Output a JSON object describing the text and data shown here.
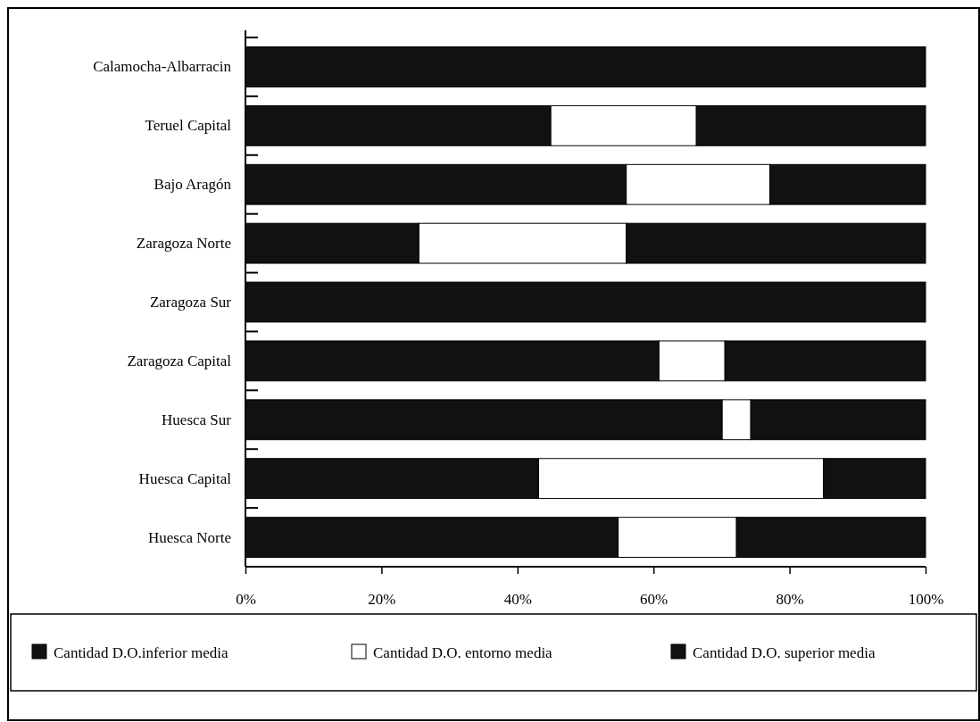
{
  "chart_data": {
    "type": "bar",
    "orientation": "horizontal",
    "stacked": true,
    "categories": [
      "Calamocha-Albarracin",
      "Teruel Capital",
      "Bajo Aragón",
      "Zaragoza Norte",
      "Zaragoza Sur",
      "Zaragoza Capital",
      "Huesca Sur",
      "Huesca Capital",
      "Huesca Norte"
    ],
    "series": [
      {
        "name": "Cantidad D.O.inferior media",
        "color": "#111111",
        "values": [
          100,
          44.9,
          56,
          25.5,
          100,
          60.8,
          70.1,
          43.1,
          54.8
        ]
      },
      {
        "name": "Cantidad D.O. entorno media",
        "color": "#ffffff",
        "values": [
          0,
          21.4,
          21.1,
          30.5,
          0,
          9.7,
          4.2,
          41.9,
          17.4
        ]
      },
      {
        "name": "Cantidad D.O. superior media",
        "color": "#111111",
        "values": [
          0,
          33.7,
          22.9,
          44,
          0,
          29.5,
          25.7,
          15,
          27.8
        ]
      }
    ],
    "xlim": [
      0,
      100
    ],
    "xticks": [
      {
        "value": 0,
        "label": "0%"
      },
      {
        "value": 20,
        "label": "20%"
      },
      {
        "value": 40,
        "label": "40%"
      },
      {
        "value": 60,
        "label": "60%"
      },
      {
        "value": 80,
        "label": "80%"
      },
      {
        "value": 100,
        "label": "100%"
      }
    ],
    "legend": "bottom",
    "grid": false
  }
}
